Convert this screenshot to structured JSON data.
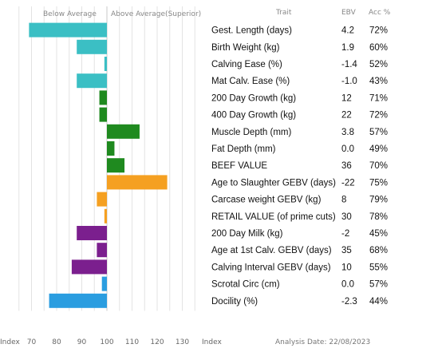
{
  "header": {
    "below_label": "Below Average",
    "above_label": "Above Average(Superior)",
    "trait_label": "Trait",
    "ebv_label": "EBV",
    "acc_label": "Acc %"
  },
  "footer": {
    "index_left": "Index",
    "index_right": "Index",
    "analysis_date": "Analysis Date: 22/08/2023"
  },
  "chart_data": {
    "type": "bar",
    "orientation": "horizontal",
    "x_axis": {
      "ticks": [
        70,
        80,
        90,
        100,
        110,
        120,
        130
      ],
      "baseline": 100,
      "range": [
        63,
        137
      ]
    },
    "grid": true,
    "rows": [
      {
        "trait": "Gest. Length (days)",
        "ebv": "4.2",
        "acc": "72%",
        "index": 69,
        "color": "#3bbfc4"
      },
      {
        "trait": "Birth Weight (kg)",
        "ebv": "1.9",
        "acc": "60%",
        "index": 88,
        "color": "#3bbfc4"
      },
      {
        "trait": "Calving Ease (%)",
        "ebv": "-1.4",
        "acc": "52%",
        "index": 99,
        "color": "#3bbfc4"
      },
      {
        "trait": "Mat Calv. Ease (%)",
        "ebv": "-1.0",
        "acc": "43%",
        "index": 88,
        "color": "#3bbfc4"
      },
      {
        "trait": "200 Day Growth (kg)",
        "ebv": "12",
        "acc": "71%",
        "index": 97,
        "color": "#1f8a1f"
      },
      {
        "trait": "400 Day Growth (kg)",
        "ebv": "22",
        "acc": "72%",
        "index": 97,
        "color": "#1f8a1f"
      },
      {
        "trait": "Muscle Depth (mm)",
        "ebv": "3.8",
        "acc": "57%",
        "index": 113,
        "color": "#1f8a1f"
      },
      {
        "trait": "Fat Depth (mm)",
        "ebv": "0.0",
        "acc": "49%",
        "index": 103,
        "color": "#1f8a1f"
      },
      {
        "trait": "BEEF VALUE",
        "ebv": "36",
        "acc": "70%",
        "index": 107,
        "color": "#1f8a1f"
      },
      {
        "trait": "Age to Slaughter GEBV (days)",
        "ebv": "-22",
        "acc": "75%",
        "index": 124,
        "color": "#f5a021"
      },
      {
        "trait": "Carcase weight GEBV (kg)",
        "ebv": "8",
        "acc": "79%",
        "index": 96,
        "color": "#f5a021"
      },
      {
        "trait": "RETAIL VALUE (of prime cuts)",
        "ebv": "30",
        "acc": "78%",
        "index": 99,
        "color": "#f5a021"
      },
      {
        "trait": "200 Day Milk (kg)",
        "ebv": "-2",
        "acc": "45%",
        "index": 88,
        "color": "#7b1f8e"
      },
      {
        "trait": "Age at 1st Calv. GEBV (days)",
        "ebv": "35",
        "acc": "68%",
        "index": 96,
        "color": "#7b1f8e"
      },
      {
        "trait": "Calving Interval GEBV (days)",
        "ebv": "10",
        "acc": "55%",
        "index": 86,
        "color": "#7b1f8e"
      },
      {
        "trait": "Scrotal Circ (cm)",
        "ebv": "0.0",
        "acc": "57%",
        "index": 98,
        "color": "#2a9de0"
      },
      {
        "trait": "Docility (%)",
        "ebv": "-2.3",
        "acc": "44%",
        "index": 77,
        "color": "#2a9de0"
      }
    ]
  }
}
